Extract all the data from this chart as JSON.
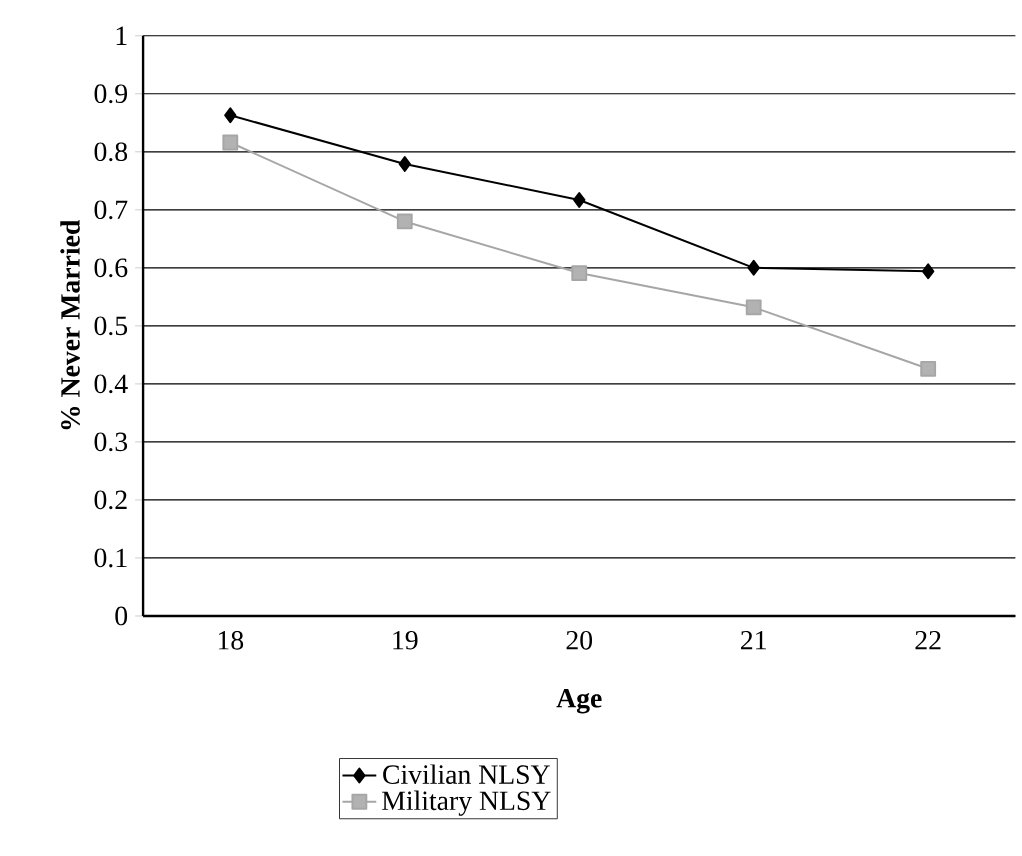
{
  "chart_data": {
    "type": "line",
    "xlabel": "Age",
    "ylabel": "% Never Married",
    "categories": [
      "18",
      "19",
      "20",
      "21",
      "22"
    ],
    "series": [
      {
        "name": "Civilian NLSY",
        "color": "#000000",
        "marker": "diamond",
        "values": [
          0.863,
          0.779,
          0.717,
          0.6,
          0.594
        ]
      },
      {
        "name": "Military NLSY",
        "color": "#a6a6a6",
        "marker": "square",
        "values": [
          0.816,
          0.68,
          0.591,
          0.532,
          0.426
        ]
      }
    ],
    "ylim": [
      0,
      1
    ],
    "yticks": [
      0,
      0.1,
      0.2,
      0.3,
      0.4,
      0.5,
      0.6,
      0.7,
      0.8,
      0.9,
      1
    ],
    "grid": "y",
    "legend": "bottom",
    "line_style": "solid"
  }
}
